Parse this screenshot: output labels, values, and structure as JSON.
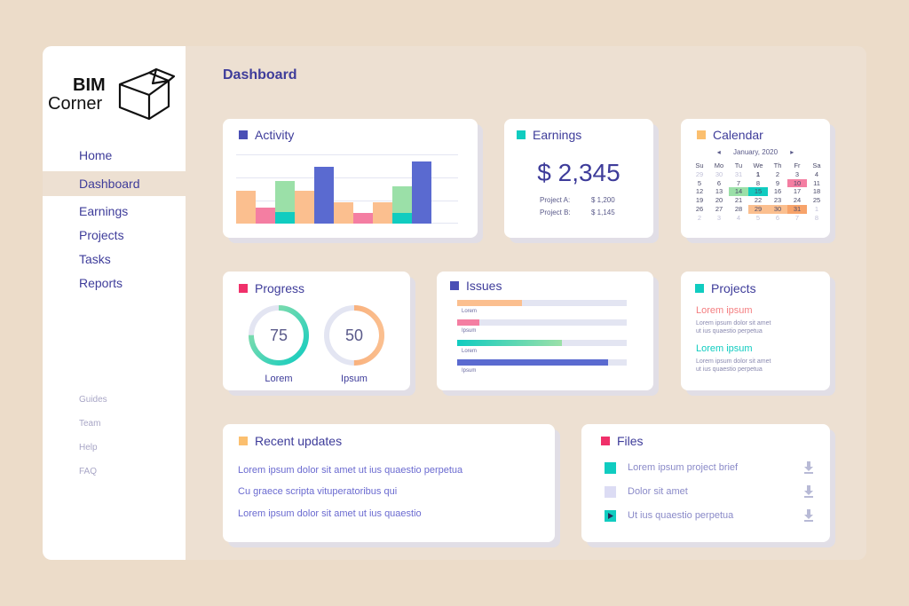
{
  "logo": {
    "line1": "BIM",
    "line2": "Corner"
  },
  "nav": {
    "items": [
      {
        "label": "Home"
      },
      {
        "label": "Dashboard"
      },
      {
        "label": "Earnings"
      },
      {
        "label": "Projects"
      },
      {
        "label": "Tasks"
      },
      {
        "label": "Reports"
      }
    ],
    "active": "Dashboard",
    "secondary": [
      {
        "label": "Guides"
      },
      {
        "label": "Team"
      },
      {
        "label": "Help"
      },
      {
        "label": "FAQ"
      }
    ]
  },
  "page_title": "Dashboard",
  "activity": {
    "title": "Activity",
    "color": "#4a4fb5",
    "bars": [
      {
        "value": 0.48,
        "color": "#fbbf8f"
      },
      {
        "value": 0.23,
        "color": "#f47ea2"
      },
      {
        "value": 0.62,
        "color": "#9be0a8"
      },
      {
        "value": 0.48,
        "color": "#fbbf8f"
      },
      {
        "value": 0.82,
        "color": "#5a6ad0"
      },
      {
        "value": 0.31,
        "color": "#fbbf8f"
      },
      {
        "value": 0.15,
        "color": "#f47ea2"
      },
      {
        "value": 0.31,
        "color": "#fbbf8f"
      },
      {
        "value": 0.54,
        "color": "#9be0a8"
      },
      {
        "value": 0.9,
        "color": "#5a6ad0"
      }
    ],
    "teal_overlays": [
      {
        "bar": 2,
        "value": 0.17
      },
      {
        "bar": 8,
        "value": 0.15
      }
    ]
  },
  "earnings": {
    "title": "Earnings",
    "color": "#10ccc0",
    "total": "$ 2,345",
    "rows": [
      {
        "label": "Project A:",
        "value": "$ 1,200"
      },
      {
        "label": "Project B:",
        "value": "$ 1,145"
      }
    ]
  },
  "calendar": {
    "title": "Calendar",
    "color": "#fbbf6f",
    "month": "January, 2020",
    "prev": "◂",
    "next": "▸",
    "weekdays": [
      "Su",
      "Mo",
      "Tu",
      "We",
      "Th",
      "Fr",
      "Sa"
    ],
    "weeks": [
      [
        "29",
        "30",
        "31",
        "1",
        "2",
        "3",
        "4"
      ],
      [
        "5",
        "6",
        "7",
        "8",
        "9",
        "10",
        "11"
      ],
      [
        "12",
        "13",
        "14",
        "15",
        "16",
        "17",
        "18"
      ],
      [
        "19",
        "20",
        "21",
        "22",
        "23",
        "24",
        "25"
      ],
      [
        "26",
        "27",
        "28",
        "29",
        "30",
        "31",
        "1"
      ],
      [
        "2",
        "3",
        "4",
        "5",
        "6",
        "7",
        "8"
      ]
    ]
  },
  "progress": {
    "title": "Progress",
    "color": "#f0306a",
    "rings": [
      {
        "value": 75,
        "label": "Lorem",
        "start_color": "#10ccc0",
        "end_color": "#9be0a8"
      },
      {
        "value": 50,
        "label": "Ipsum",
        "start_color": "#fbbf8f",
        "end_color": "#f7a36a"
      }
    ]
  },
  "issues": {
    "title": "Issues",
    "color": "#4a4fb5",
    "bars": [
      {
        "value": 0.38,
        "label": "Lorem",
        "color": "#fbbf8f"
      },
      {
        "value": 0.13,
        "label": "Ipsum",
        "color": "#f47ea2"
      },
      {
        "value": 0.62,
        "label": "Lorem",
        "color": "#10ccc0"
      },
      {
        "value": 0.89,
        "label": "Ipsum",
        "color": "#5a6ad0"
      }
    ]
  },
  "projects": {
    "title": "Projects",
    "color": "#10ccc0",
    "items": [
      {
        "name": "Lorem ipsum",
        "color": "#f47e80",
        "lines": [
          "Lorem ipsum dolor sit amet",
          "ut ius quaestio perpetua"
        ]
      },
      {
        "name": "Lorem ipsum",
        "color": "#10ccc0",
        "lines": [
          "Lorem ipsum dolor sit amet",
          "ut ius quaestio perpetua"
        ]
      }
    ]
  },
  "recent_updates": {
    "title": "Recent updates",
    "color": "#fbbf6f",
    "items": [
      "Lorem ipsum dolor sit amet ut ius quaestio perpetua",
      "Cu graece scripta vituperatoribus qui",
      "Lorem ipsum dolor sit amet ut ius quaestio"
    ]
  },
  "files": {
    "title": "Files",
    "color": "#f0306a",
    "items": [
      {
        "name": "Lorem ipsum project brief",
        "icon": "document-icon",
        "icon_color": "#10ccc0"
      },
      {
        "name": "Dolor sit amet",
        "icon": "document-icon",
        "icon_color": "#dcdcf4"
      },
      {
        "name": "Ut ius quaestio perpetua",
        "icon": "video-icon",
        "icon_color": "#10ccc0"
      }
    ]
  }
}
